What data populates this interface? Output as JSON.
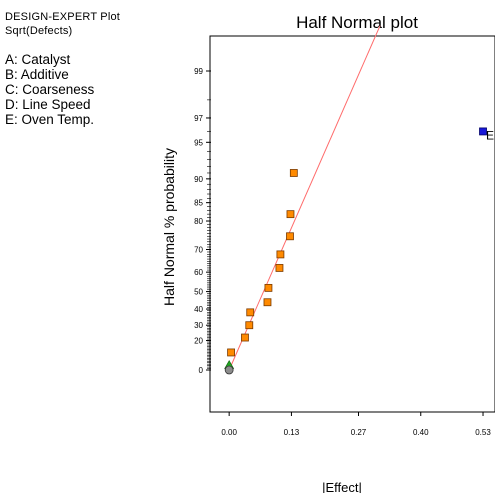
{
  "header": {
    "program": "DESIGN-EXPERT Plot",
    "response": "Sqrt(Defects)"
  },
  "factors": [
    "A: Catalyst",
    "B: Additive",
    "C: Coarseness",
    "D: Line Speed",
    "E: Oven Temp."
  ],
  "chart_data": {
    "type": "scatter",
    "title": "Half Normal plot",
    "xlabel": "|Effect|",
    "ylabel": "Half Normal % probability",
    "xlim": [
      -0.04,
      0.555
    ],
    "x_ticks": [
      "0.00",
      "0.13",
      "0.27",
      "0.40",
      "0.53"
    ],
    "y_ticks": [
      "0",
      "20",
      "30",
      "40",
      "50",
      "60",
      "70",
      "80",
      "85",
      "90",
      "95",
      "97",
      "99"
    ],
    "series": [
      {
        "marker": "square-orange",
        "points": [
          {
            "x": 0.004,
            "y": 12
          },
          {
            "x": 0.033,
            "y": 22
          },
          {
            "x": 0.042,
            "y": 30
          },
          {
            "x": 0.044,
            "y": 38
          },
          {
            "x": 0.08,
            "y": 44
          },
          {
            "x": 0.082,
            "y": 52
          },
          {
            "x": 0.105,
            "y": 62
          },
          {
            "x": 0.107,
            "y": 68
          },
          {
            "x": 0.127,
            "y": 75
          },
          {
            "x": 0.128,
            "y": 82
          },
          {
            "x": 0.135,
            "y": 91
          }
        ]
      },
      {
        "marker": "square-blue",
        "points": [
          {
            "x": 0.53,
            "y": 96,
            "label": "E"
          }
        ]
      },
      {
        "marker": "triangle-green",
        "points": [
          {
            "x": 0.0,
            "y": 3
          }
        ]
      },
      {
        "marker": "circle-gray",
        "points": [
          {
            "x": 0.0,
            "y": 0
          }
        ]
      }
    ],
    "reference_line": {
      "from": {
        "x": 0.0,
        "y": 0
      },
      "to": {
        "x": 0.315,
        "y": 99.7
      }
    },
    "colors": {
      "line": "#ff6b6b",
      "square": "#ff8a00",
      "square_outline": "#7a3a00",
      "highlight": "#1818d8",
      "triangle": "#1fa51f",
      "circle": "#8c8c8c"
    }
  }
}
